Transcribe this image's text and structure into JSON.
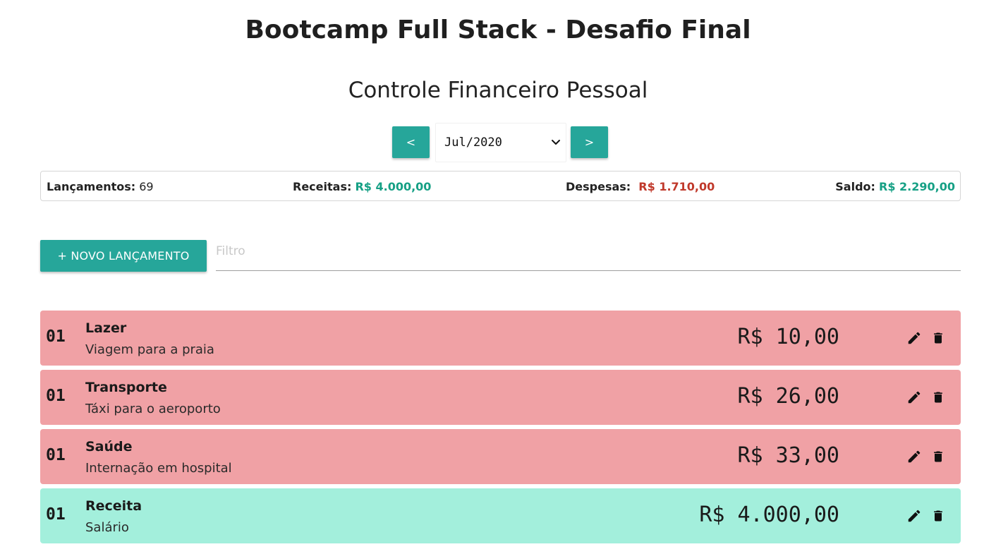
{
  "header": {
    "title": "Bootcamp Full Stack - Desafio Final",
    "subtitle": "Controle Financeiro Pessoal"
  },
  "period_nav": {
    "prev_label": "<",
    "next_label": ">",
    "selected_period": "Jul/2020"
  },
  "summary": {
    "entries_label": "Lançamentos:",
    "entries_count": "69",
    "income_label": "Receitas:",
    "income_value": "R$ 4.000,00",
    "expense_label": "Despesas:",
    "expense_value": "R$ 1.710,00",
    "balance_label": "Saldo:",
    "balance_value": "R$ 2.290,00",
    "colors": {
      "positive": "#16a085",
      "negative": "#c0392b"
    }
  },
  "toolbar": {
    "new_button_label": "+ NOVO LANÇAMENTO",
    "filter_placeholder": "Filtro",
    "filter_value": ""
  },
  "transactions": [
    {
      "day": "01",
      "category": "Lazer",
      "description": "Viagem para a praia",
      "value": "R$ 10,00",
      "type": "expense"
    },
    {
      "day": "01",
      "category": "Transporte",
      "description": "Táxi para o aeroporto",
      "value": "R$ 26,00",
      "type": "expense"
    },
    {
      "day": "01",
      "category": "Saúde",
      "description": "Internação em hospital",
      "value": "R$ 33,00",
      "type": "expense"
    },
    {
      "day": "01",
      "category": "Receita",
      "description": "Salário",
      "value": "R$ 4.000,00",
      "type": "income"
    }
  ],
  "colors": {
    "accent": "#26a69a",
    "expense_row": "#f0a1a5",
    "income_row": "#a3efdc"
  },
  "icons": {
    "edit": "pencil-icon",
    "delete": "trash-icon",
    "dropdown": "chevron-down-icon"
  }
}
